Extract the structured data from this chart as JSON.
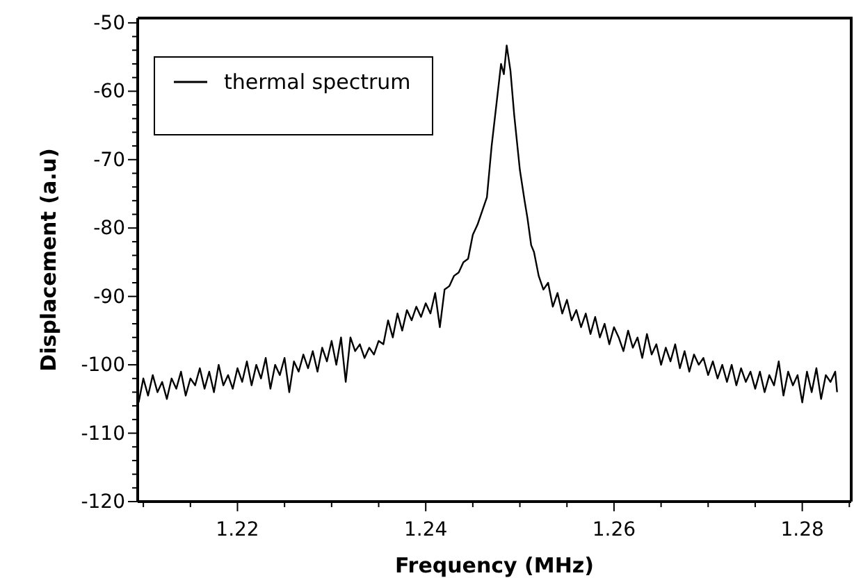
{
  "chart_data": {
    "type": "line",
    "xlabel": "Frequency (MHz)",
    "ylabel": "Displacement (a.u)",
    "legend": "top left",
    "grid": false,
    "marker": "none",
    "line_style": "solid",
    "xlim": [
      1.2094,
      1.2852
    ],
    "ylim": [
      -120,
      -49.3
    ],
    "xticks": [
      {
        "value": 1.21,
        "label": null
      },
      {
        "value": 1.215,
        "label": null
      },
      1.22,
      {
        "value": 1.225,
        "label": null
      },
      {
        "value": 1.23,
        "label": null
      },
      {
        "value": 1.235,
        "label": null
      },
      1.24,
      {
        "value": 1.245,
        "label": null
      },
      {
        "value": 1.25,
        "label": null
      },
      {
        "value": 1.255,
        "label": null
      },
      1.26,
      {
        "value": 1.265,
        "label": null
      },
      {
        "value": 1.27,
        "label": null
      },
      {
        "value": 1.275,
        "label": null
      },
      1.28,
      {
        "value": 1.285,
        "label": null
      }
    ],
    "yticks": [
      -120,
      {
        "value": -118,
        "label": null
      },
      {
        "value": -116,
        "label": null
      },
      {
        "value": -114,
        "label": null
      },
      {
        "value": -112,
        "label": null
      },
      -110,
      {
        "value": -108,
        "label": null
      },
      {
        "value": -106,
        "label": null
      },
      {
        "value": -104,
        "label": null
      },
      {
        "value": -102,
        "label": null
      },
      -100,
      {
        "value": -98,
        "label": null
      },
      {
        "value": -96,
        "label": null
      },
      {
        "value": -94,
        "label": null
      },
      {
        "value": -92,
        "label": null
      },
      -90,
      {
        "value": -88,
        "label": null
      },
      {
        "value": -86,
        "label": null
      },
      {
        "value": -84,
        "label": null
      },
      {
        "value": -82,
        "label": null
      },
      -80,
      {
        "value": -78,
        "label": null
      },
      {
        "value": -76,
        "label": null
      },
      {
        "value": -74,
        "label": null
      },
      {
        "value": -72,
        "label": null
      },
      -70,
      {
        "value": -68,
        "label": null
      },
      {
        "value": -66,
        "label": null
      },
      {
        "value": -64,
        "label": null
      },
      {
        "value": -62,
        "label": null
      },
      -60,
      {
        "value": -58,
        "label": null
      },
      {
        "value": -56,
        "label": null
      },
      {
        "value": -54,
        "label": null
      },
      {
        "value": -52,
        "label": null
      },
      -50
    ],
    "x": [
      1.2095,
      1.21,
      1.2105,
      1.211,
      1.2115,
      1.212,
      1.2125,
      1.213,
      1.2135,
      1.214,
      1.2145,
      1.215,
      1.2155,
      1.216,
      1.2165,
      1.217,
      1.2175,
      1.218,
      1.2185,
      1.219,
      1.2195,
      1.22,
      1.2205,
      1.221,
      1.2215,
      1.222,
      1.2225,
      1.223,
      1.2235,
      1.224,
      1.2245,
      1.225,
      1.2255,
      1.226,
      1.2265,
      1.227,
      1.2275,
      1.228,
      1.2285,
      1.229,
      1.2295,
      1.23,
      1.2305,
      1.231,
      1.2315,
      1.232,
      1.2325,
      1.233,
      1.2335,
      1.234,
      1.2345,
      1.235,
      1.2355,
      1.236,
      1.2365,
      1.237,
      1.2375,
      1.238,
      1.2385,
      1.239,
      1.2395,
      1.24,
      1.2405,
      1.241,
      1.2415,
      1.242,
      1.2425,
      1.243,
      1.2435,
      1.244,
      1.2445,
      1.245,
      1.2455,
      1.246,
      1.2465,
      1.247,
      1.2475,
      1.248,
      1.2483,
      1.2486,
      1.249,
      1.2494,
      1.25,
      1.2505,
      1.2508,
      1.2512,
      1.2515,
      1.252,
      1.2525,
      1.253,
      1.2535,
      1.254,
      1.2545,
      1.255,
      1.2555,
      1.256,
      1.2565,
      1.257,
      1.2575,
      1.258,
      1.2585,
      1.259,
      1.2595,
      1.26,
      1.2605,
      1.261,
      1.2615,
      1.262,
      1.2625,
      1.263,
      1.2635,
      1.264,
      1.2645,
      1.265,
      1.2655,
      1.266,
      1.2665,
      1.267,
      1.2675,
      1.268,
      1.2685,
      1.269,
      1.2695,
      1.27,
      1.2705,
      1.271,
      1.2715,
      1.272,
      1.2725,
      1.273,
      1.2735,
      1.274,
      1.2745,
      1.275,
      1.2755,
      1.276,
      1.2765,
      1.277,
      1.2775,
      1.278,
      1.2785,
      1.279,
      1.2795,
      1.28,
      1.2805,
      1.281,
      1.2815,
      1.282,
      1.2825,
      1.283,
      1.2835,
      1.2837
    ],
    "series": [
      {
        "name": "thermal spectrum",
        "color": "#000000",
        "values": [
          -105.5,
          -102,
          -104.5,
          -101.5,
          -104,
          -102.5,
          -105,
          -102,
          -103.5,
          -101,
          -104.5,
          -102,
          -103,
          -100.5,
          -103.5,
          -101,
          -104,
          -100,
          -103,
          -101.5,
          -103.5,
          -100.5,
          -102.5,
          -99.5,
          -103,
          -100,
          -102,
          -99,
          -103.5,
          -100,
          -101.5,
          -99,
          -104,
          -99.5,
          -101,
          -98.5,
          -100.5,
          -98,
          -101,
          -97.5,
          -99.5,
          -96.5,
          -100,
          -96,
          -102.5,
          -96,
          -98,
          -97,
          -99,
          -97.5,
          -98.5,
          -96.5,
          -97,
          -93.5,
          -96,
          -92.5,
          -95,
          -92,
          -93.5,
          -91.5,
          -93,
          -91,
          -92.5,
          -89.5,
          -94.5,
          -89,
          -88.5,
          -87,
          -86.5,
          -85,
          -84.5,
          -81,
          -79.5,
          -77.5,
          -75.5,
          -68,
          -62,
          -56,
          -57.5,
          -53.3,
          -57,
          -63.5,
          -71.5,
          -76,
          -78.5,
          -82.5,
          -83.5,
          -87,
          -89,
          -88,
          -91.5,
          -89.5,
          -92.5,
          -90.5,
          -93.5,
          -92,
          -94.5,
          -92.5,
          -95.5,
          -93,
          -96,
          -94,
          -97,
          -94.5,
          -96,
          -98,
          -95,
          -97.5,
          -96,
          -99,
          -95.5,
          -98.5,
          -97,
          -100,
          -97.5,
          -99.5,
          -97,
          -100.5,
          -98,
          -101,
          -98.5,
          -100,
          -99,
          -101.5,
          -99.5,
          -102,
          -100,
          -102.5,
          -100,
          -103,
          -100.5,
          -102.5,
          -101,
          -103.5,
          -101,
          -104,
          -101.5,
          -103,
          -99.5,
          -104.5,
          -101,
          -103,
          -101.5,
          -105.5,
          -101,
          -104,
          -100.5,
          -105,
          -101.5,
          -102.5,
          -101,
          -104
        ]
      }
    ]
  }
}
